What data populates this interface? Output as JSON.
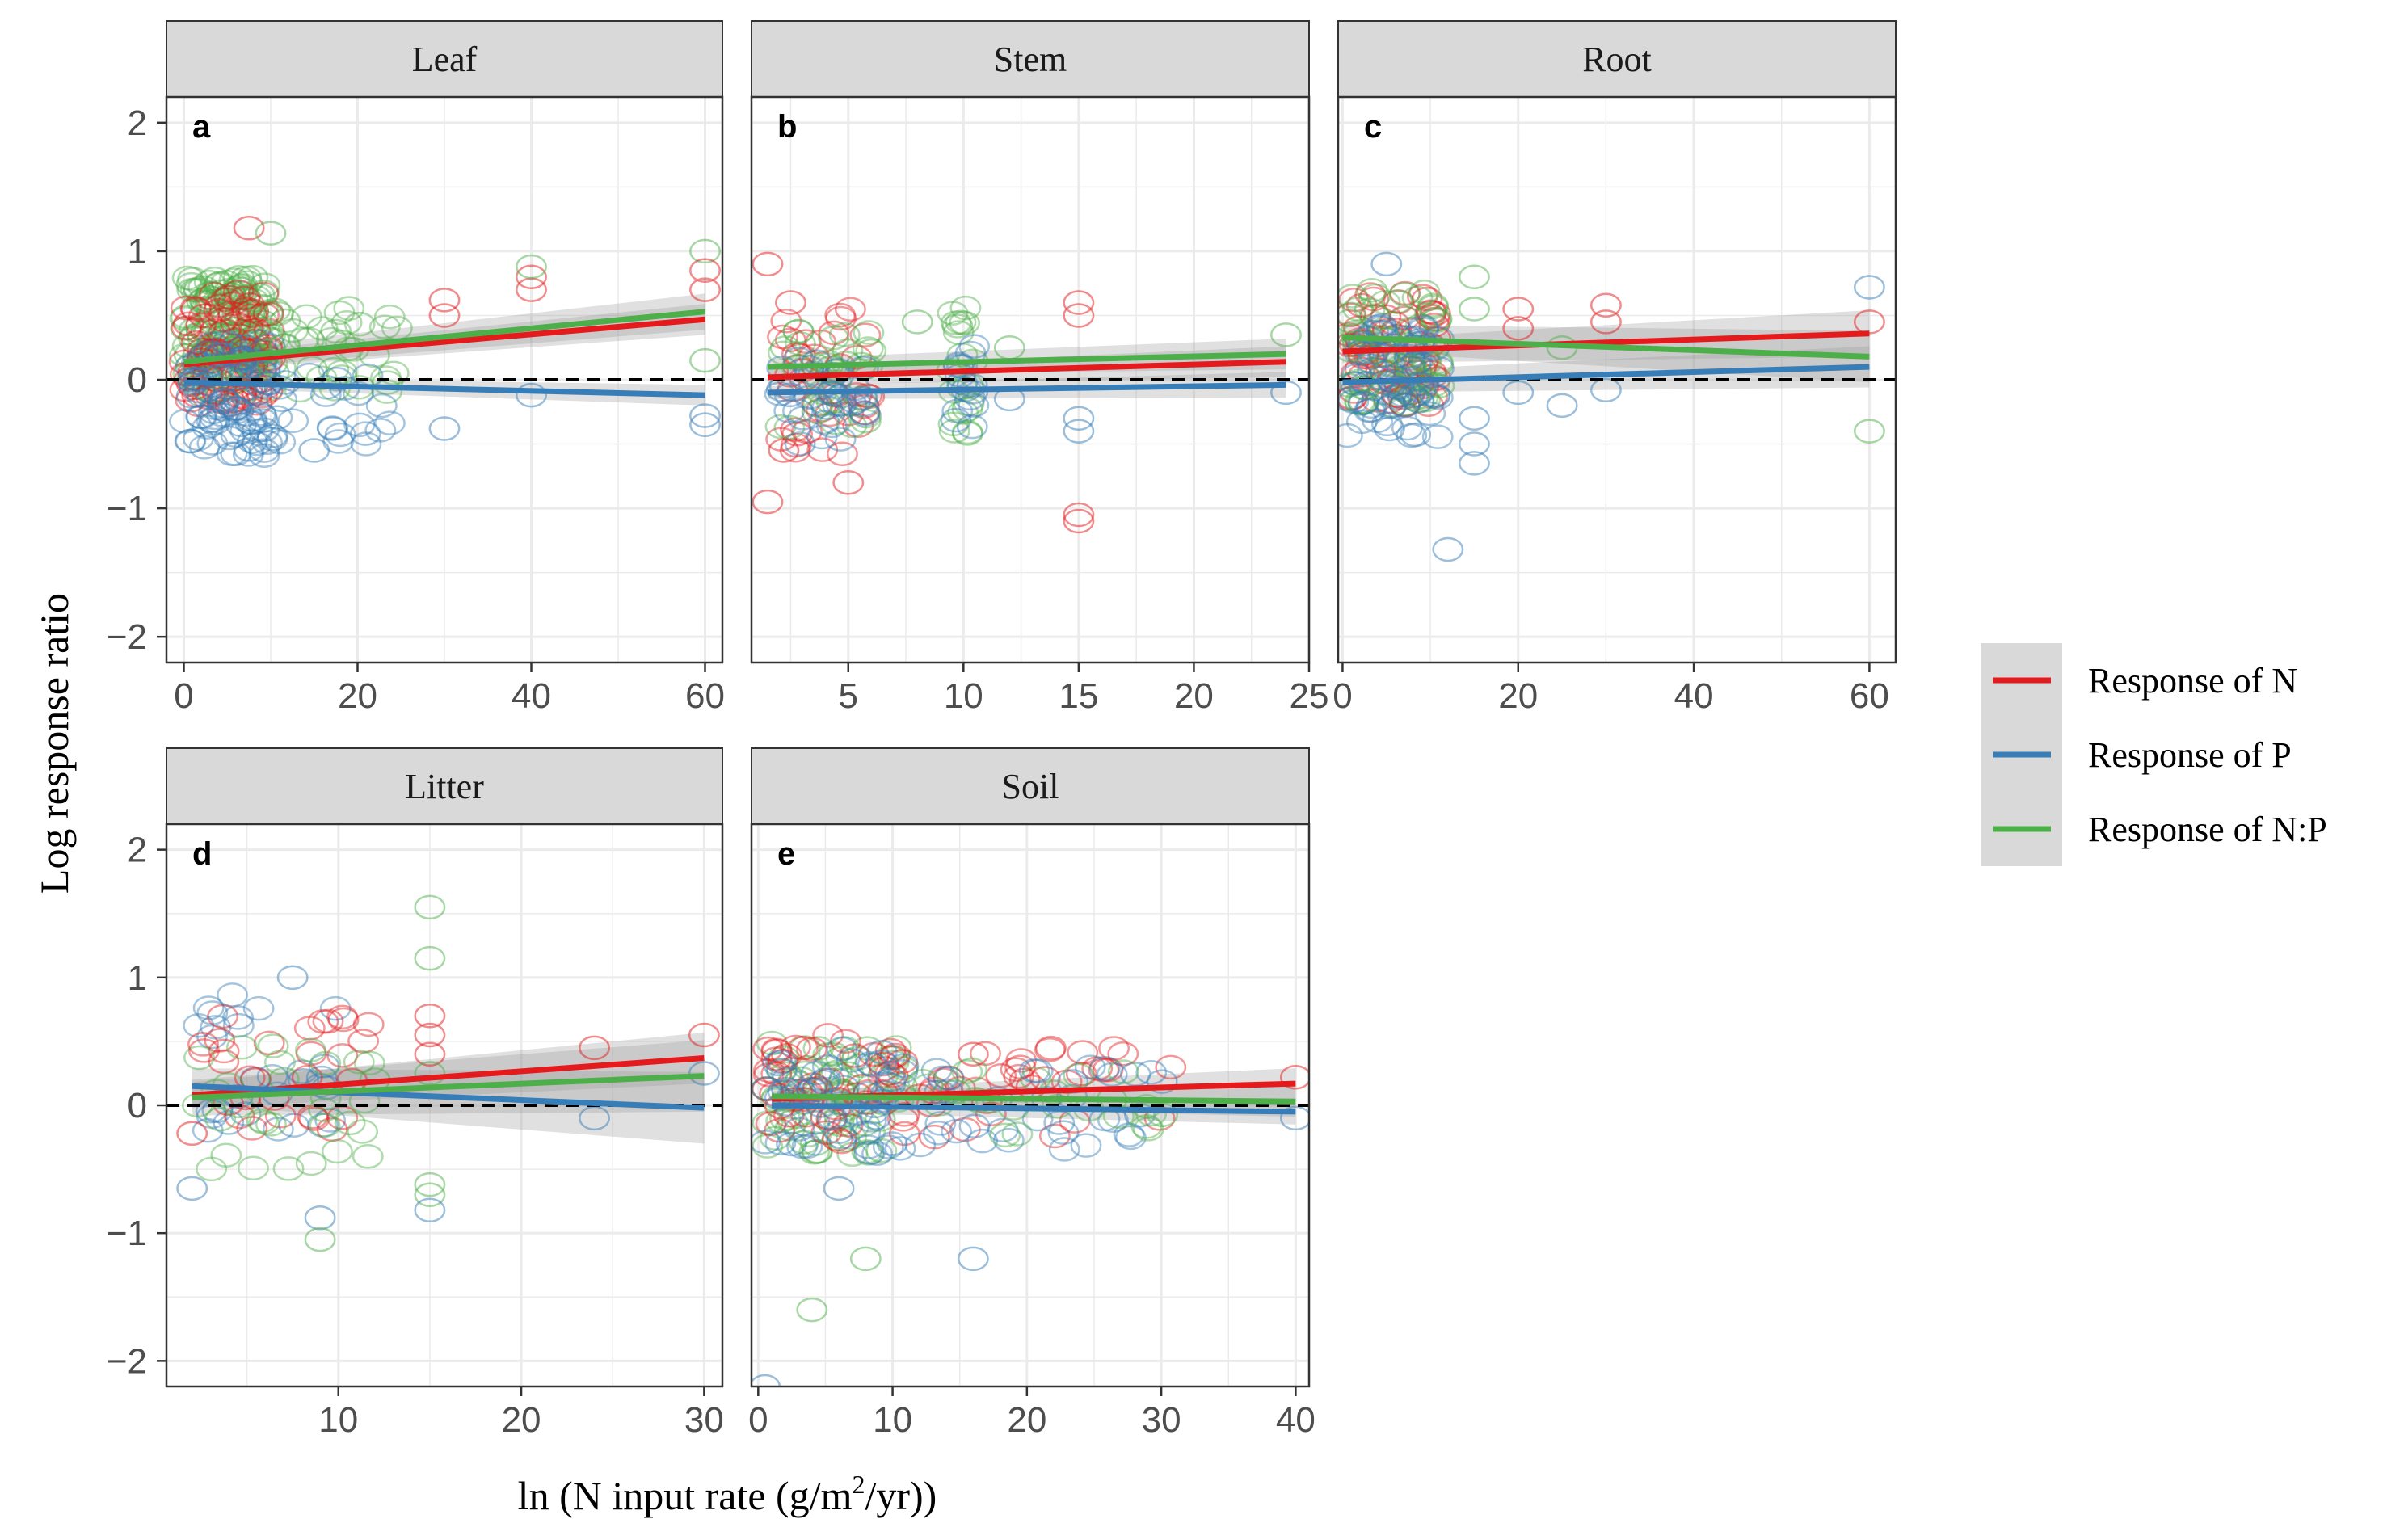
{
  "figure": {
    "ylabel": "Log response ratio",
    "xlabel_prefix": "ln (N input rate (g/m",
    "xlabel_sup": "2",
    "xlabel_suffix": "/yr))",
    "colors": {
      "N": "#e41a1c",
      "P": "#377eb8",
      "NP": "#4daf4a",
      "strip": "#d9d9d9",
      "grid": "#ebebeb"
    }
  },
  "legend": {
    "items": [
      {
        "key": "N",
        "label": "Response of N"
      },
      {
        "key": "P",
        "label": "Response of P"
      },
      {
        "key": "NP",
        "label": "Response of N:P"
      }
    ]
  },
  "chart_data": [
    {
      "panel": "Leaf",
      "tag": "a",
      "type": "scatter",
      "xlim": [
        -2,
        62
      ],
      "ylim": [
        -2.2,
        2.2
      ],
      "xticks": [
        0,
        20,
        40,
        60
      ],
      "xtick_labels": [
        "0",
        "20",
        "40",
        "60"
      ],
      "yticks": [
        -2,
        -1,
        0,
        1,
        2
      ],
      "ytick_labels": [
        "−2",
        "−1",
        "0",
        "1",
        "2"
      ],
      "show_yticks": true,
      "show_xticks": true,
      "fit_lines": [
        {
          "name": "Response of N",
          "key": "N",
          "x": [
            0,
            60
          ],
          "y": [
            0.12,
            0.47
          ],
          "ci": 0.06
        },
        {
          "name": "Response of P",
          "key": "P",
          "x": [
            0,
            60
          ],
          "y": [
            -0.02,
            -0.12
          ],
          "ci": 0.04
        },
        {
          "name": "Response of N:P",
          "key": "NP",
          "x": [
            0,
            60
          ],
          "y": [
            0.14,
            0.53
          ],
          "ci": 0.07
        }
      ],
      "point_clusters": [
        {
          "key": "NP",
          "x": [
            0,
            10
          ],
          "y": [
            -0.1,
            0.8
          ],
          "n": 160
        },
        {
          "key": "N",
          "x": [
            0,
            10
          ],
          "y": [
            -0.2,
            0.7
          ],
          "n": 90
        },
        {
          "key": "P",
          "x": [
            0,
            10
          ],
          "y": [
            -0.6,
            0.3
          ],
          "n": 90
        },
        {
          "key": "NP",
          "x": [
            10,
            25
          ],
          "y": [
            -0.1,
            0.6
          ],
          "n": 40
        },
        {
          "key": "P",
          "x": [
            10,
            25
          ],
          "y": [
            -0.5,
            0.1
          ],
          "n": 25
        }
      ],
      "points": [
        {
          "key": "N",
          "x": 7.5,
          "y": 1.18
        },
        {
          "key": "NP",
          "x": 10,
          "y": 1.14
        },
        {
          "key": "N",
          "x": 30,
          "y": 0.5
        },
        {
          "key": "N",
          "x": 30,
          "y": 0.62
        },
        {
          "key": "N",
          "x": 40,
          "y": 0.7
        },
        {
          "key": "N",
          "x": 40,
          "y": 0.8
        },
        {
          "key": "NP",
          "x": 40,
          "y": 0.88
        },
        {
          "key": "NP",
          "x": 60,
          "y": 1.0
        },
        {
          "key": "N",
          "x": 60,
          "y": 0.85
        },
        {
          "key": "N",
          "x": 60,
          "y": 0.7
        },
        {
          "key": "P",
          "x": 30,
          "y": -0.38
        },
        {
          "key": "P",
          "x": 40,
          "y": -0.12
        },
        {
          "key": "P",
          "x": 60,
          "y": -0.28
        },
        {
          "key": "P",
          "x": 60,
          "y": -0.35
        },
        {
          "key": "NP",
          "x": 60,
          "y": 0.15
        },
        {
          "key": "P",
          "x": 15,
          "y": -0.55
        }
      ]
    },
    {
      "panel": "Stem",
      "tag": "b",
      "type": "scatter",
      "xlim": [
        0.8,
        25
      ],
      "ylim": [
        -2.2,
        2.2
      ],
      "xticks": [
        5,
        10,
        15,
        20,
        25
      ],
      "xtick_labels": [
        "5",
        "10",
        "15",
        "20",
        "25"
      ],
      "yticks": [
        -2,
        -1,
        0,
        1,
        2
      ],
      "ytick_labels": [],
      "show_yticks": false,
      "show_xticks": true,
      "fit_lines": [
        {
          "name": "Response of N",
          "key": "N",
          "x": [
            1.5,
            24
          ],
          "y": [
            0.02,
            0.14
          ],
          "ci": 0.06
        },
        {
          "name": "Response of P",
          "key": "P",
          "x": [
            1.5,
            24
          ],
          "y": [
            -0.1,
            -0.04
          ],
          "ci": 0.05
        },
        {
          "name": "Response of N:P",
          "key": "NP",
          "x": [
            1.5,
            24
          ],
          "y": [
            0.1,
            0.2
          ],
          "ci": 0.06
        }
      ],
      "point_clusters": [
        {
          "key": "N",
          "x": [
            2,
            6
          ],
          "y": [
            -0.6,
            0.6
          ],
          "n": 40
        },
        {
          "key": "NP",
          "x": [
            2,
            6
          ],
          "y": [
            -0.4,
            0.4
          ],
          "n": 35
        },
        {
          "key": "P",
          "x": [
            2,
            6
          ],
          "y": [
            -0.5,
            0.2
          ],
          "n": 35
        },
        {
          "key": "NP",
          "x": [
            9.5,
            10.5
          ],
          "y": [
            -0.5,
            0.6
          ],
          "n": 20
        },
        {
          "key": "P",
          "x": [
            9.5,
            10.5
          ],
          "y": [
            -0.4,
            0.3
          ],
          "n": 15
        }
      ],
      "points": [
        {
          "key": "N",
          "x": 1.5,
          "y": 0.9
        },
        {
          "key": "N",
          "x": 2.5,
          "y": 0.6
        },
        {
          "key": "N",
          "x": 1.5,
          "y": -0.95
        },
        {
          "key": "N",
          "x": 2.2,
          "y": -0.55
        },
        {
          "key": "N",
          "x": 5,
          "y": -0.8
        },
        {
          "key": "N",
          "x": 15,
          "y": 0.6
        },
        {
          "key": "N",
          "x": 15,
          "y": 0.5
        },
        {
          "key": "N",
          "x": 15,
          "y": -1.1
        },
        {
          "key": "N",
          "x": 15,
          "y": -1.05
        },
        {
          "key": "P",
          "x": 15,
          "y": -0.3
        },
        {
          "key": "P",
          "x": 15,
          "y": -0.4
        },
        {
          "key": "NP",
          "x": 8,
          "y": 0.45
        },
        {
          "key": "NP",
          "x": 12,
          "y": 0.25
        },
        {
          "key": "NP",
          "x": 24,
          "y": 0.35
        },
        {
          "key": "P",
          "x": 24,
          "y": -0.1
        },
        {
          "key": "P",
          "x": 12,
          "y": -0.15
        }
      ]
    },
    {
      "panel": "Root",
      "tag": "c",
      "type": "scatter",
      "xlim": [
        -0.5,
        63
      ],
      "ylim": [
        -2.2,
        2.2
      ],
      "xticks": [
        0,
        20,
        40,
        60
      ],
      "xtick_labels": [
        "0",
        "20",
        "40",
        "60"
      ],
      "yticks": [
        -2,
        -1,
        0,
        1,
        2
      ],
      "ytick_labels": [],
      "show_yticks": false,
      "show_xticks": true,
      "fit_lines": [
        {
          "name": "Response of N",
          "key": "N",
          "x": [
            0,
            60
          ],
          "y": [
            0.22,
            0.36
          ],
          "ci": 0.09
        },
        {
          "name": "Response of P",
          "key": "P",
          "x": [
            0,
            60
          ],
          "y": [
            -0.02,
            0.1
          ],
          "ci": 0.08
        },
        {
          "name": "Response of N:P",
          "key": "NP",
          "x": [
            0,
            60
          ],
          "y": [
            0.33,
            0.18
          ],
          "ci": 0.1
        }
      ],
      "point_clusters": [
        {
          "key": "N",
          "x": [
            0.5,
            11
          ],
          "y": [
            -0.2,
            0.7
          ],
          "n": 70
        },
        {
          "key": "NP",
          "x": [
            0.5,
            11
          ],
          "y": [
            -0.2,
            0.7
          ],
          "n": 70
        },
        {
          "key": "P",
          "x": [
            0.5,
            11
          ],
          "y": [
            -0.45,
            0.5
          ],
          "n": 70
        }
      ],
      "points": [
        {
          "key": "P",
          "x": 5,
          "y": 0.9
        },
        {
          "key": "P",
          "x": 12,
          "y": -1.32
        },
        {
          "key": "NP",
          "x": 15,
          "y": 0.8
        },
        {
          "key": "NP",
          "x": 15,
          "y": 0.55
        },
        {
          "key": "P",
          "x": 15,
          "y": -0.3
        },
        {
          "key": "P",
          "x": 15,
          "y": -0.5
        },
        {
          "key": "P",
          "x": 15,
          "y": -0.65
        },
        {
          "key": "N",
          "x": 20,
          "y": 0.55
        },
        {
          "key": "N",
          "x": 20,
          "y": 0.4
        },
        {
          "key": "P",
          "x": 20,
          "y": -0.1
        },
        {
          "key": "P",
          "x": 25,
          "y": -0.2
        },
        {
          "key": "N",
          "x": 30,
          "y": 0.58
        },
        {
          "key": "N",
          "x": 30,
          "y": 0.45
        },
        {
          "key": "P",
          "x": 30,
          "y": -0.08
        },
        {
          "key": "P",
          "x": 60,
          "y": 0.72
        },
        {
          "key": "N",
          "x": 60,
          "y": 0.45
        },
        {
          "key": "NP",
          "x": 60,
          "y": -0.4
        },
        {
          "key": "NP",
          "x": 25,
          "y": 0.25
        }
      ]
    },
    {
      "panel": "Litter",
      "tag": "d",
      "type": "scatter",
      "xlim": [
        0.6,
        31
      ],
      "ylim": [
        -2.2,
        2.2
      ],
      "xticks": [
        10,
        20,
        30
      ],
      "xtick_labels": [
        "10",
        "20",
        "30"
      ],
      "yticks": [
        -2,
        -1,
        0,
        1,
        2
      ],
      "ytick_labels": [
        "−2",
        "−1",
        "0",
        "1",
        "2"
      ],
      "show_yticks": true,
      "show_xticks": true,
      "fit_lines": [
        {
          "name": "Response of N",
          "key": "N",
          "x": [
            2,
            30
          ],
          "y": [
            0.08,
            0.37
          ],
          "ci": 0.1
        },
        {
          "name": "Response of P",
          "key": "P",
          "x": [
            2,
            30
          ],
          "y": [
            0.15,
            -0.02
          ],
          "ci": 0.14
        },
        {
          "name": "Response of N:P",
          "key": "NP",
          "x": [
            2,
            30
          ],
          "y": [
            0.06,
            0.23
          ],
          "ci": 0.14
        }
      ],
      "point_clusters": [
        {
          "key": "P",
          "x": [
            2,
            10
          ],
          "y": [
            -0.2,
            0.9
          ],
          "n": 30
        },
        {
          "key": "N",
          "x": [
            2,
            12
          ],
          "y": [
            -0.2,
            0.7
          ],
          "n": 30
        },
        {
          "key": "NP",
          "x": [
            2,
            12
          ],
          "y": [
            -0.5,
            0.5
          ],
          "n": 30
        }
      ],
      "points": [
        {
          "key": "NP",
          "x": 15,
          "y": 1.55
        },
        {
          "key": "NP",
          "x": 15,
          "y": 1.15
        },
        {
          "key": "N",
          "x": 15,
          "y": 0.7
        },
        {
          "key": "N",
          "x": 15,
          "y": 0.55
        },
        {
          "key": "N",
          "x": 15,
          "y": 0.4
        },
        {
          "key": "NP",
          "x": 15,
          "y": 0.25
        },
        {
          "key": "NP",
          "x": 15,
          "y": -0.62
        },
        {
          "key": "NP",
          "x": 15,
          "y": -0.7
        },
        {
          "key": "P",
          "x": 15,
          "y": -0.82
        },
        {
          "key": "P",
          "x": 9,
          "y": -0.88
        },
        {
          "key": "NP",
          "x": 9,
          "y": -1.05
        },
        {
          "key": "P",
          "x": 2,
          "y": -0.65
        },
        {
          "key": "N",
          "x": 2,
          "y": -0.22
        },
        {
          "key": "P",
          "x": 7.5,
          "y": 1.0
        },
        {
          "key": "N",
          "x": 24,
          "y": 0.45
        },
        {
          "key": "P",
          "x": 24,
          "y": -0.1
        },
        {
          "key": "N",
          "x": 30,
          "y": 0.55
        },
        {
          "key": "P",
          "x": 30,
          "y": 0.25
        },
        {
          "key": "NP",
          "x": 12,
          "y": 0.2
        }
      ]
    },
    {
      "panel": "Soil",
      "tag": "e",
      "type": "scatter",
      "xlim": [
        -0.5,
        41
      ],
      "ylim": [
        -2.2,
        2.2
      ],
      "xticks": [
        0,
        10,
        20,
        30,
        40
      ],
      "xtick_labels": [
        "0",
        "10",
        "20",
        "30",
        "40"
      ],
      "yticks": [
        -2,
        -1,
        0,
        1,
        2
      ],
      "ytick_labels": [],
      "show_yticks": false,
      "show_xticks": true,
      "fit_lines": [
        {
          "name": "Response of N",
          "key": "N",
          "x": [
            1,
            40
          ],
          "y": [
            0.05,
            0.17
          ],
          "ci": 0.06
        },
        {
          "name": "Response of P",
          "key": "P",
          "x": [
            1,
            40
          ],
          "y": [
            0.0,
            -0.05
          ],
          "ci": 0.05
        },
        {
          "name": "Response of N:P",
          "key": "NP",
          "x": [
            1,
            40
          ],
          "y": [
            0.07,
            0.03
          ],
          "ci": 0.06
        }
      ],
      "point_clusters": [
        {
          "key": "NP",
          "x": [
            0.5,
            11
          ],
          "y": [
            -0.4,
            0.5
          ],
          "n": 70
        },
        {
          "key": "N",
          "x": [
            0.5,
            11
          ],
          "y": [
            -0.3,
            0.55
          ],
          "n": 55
        },
        {
          "key": "P",
          "x": [
            0.5,
            11
          ],
          "y": [
            -0.4,
            0.45
          ],
          "n": 55
        },
        {
          "key": "N",
          "x": [
            12,
            31
          ],
          "y": [
            -0.25,
            0.45
          ],
          "n": 35
        },
        {
          "key": "P",
          "x": [
            12,
            31
          ],
          "y": [
            -0.35,
            0.3
          ],
          "n": 35
        },
        {
          "key": "NP",
          "x": [
            12,
            31
          ],
          "y": [
            -0.25,
            0.3
          ],
          "n": 25
        }
      ],
      "points": [
        {
          "key": "NP",
          "x": 4,
          "y": -1.6
        },
        {
          "key": "NP",
          "x": 8,
          "y": -1.2
        },
        {
          "key": "P",
          "x": 16,
          "y": -1.2
        },
        {
          "key": "P",
          "x": 6,
          "y": -0.65
        },
        {
          "key": "P",
          "x": 0.5,
          "y": -2.2
        },
        {
          "key": "N",
          "x": 40,
          "y": 0.22
        },
        {
          "key": "P",
          "x": 40,
          "y": -0.1
        },
        {
          "key": "N",
          "x": 16,
          "y": 0.4
        }
      ]
    }
  ]
}
